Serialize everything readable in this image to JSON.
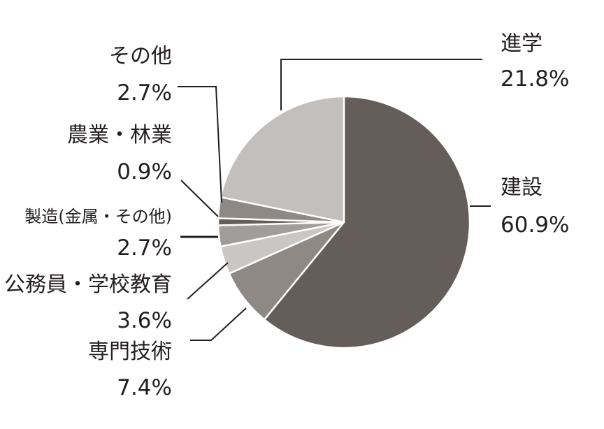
{
  "chart_data": {
    "type": "pie",
    "title": "",
    "slices": [
      {
        "name": "建設",
        "value": 60.9,
        "label": "60.9%",
        "color": "#645d5a"
      },
      {
        "name": "専門技術",
        "value": 7.4,
        "label": "7.4%",
        "color": "#8e8985"
      },
      {
        "name": "公務員・学校教育",
        "value": 3.6,
        "label": "3.6%",
        "color": "#c9c6c3"
      },
      {
        "name": "製造(金属・その他)",
        "value": 2.7,
        "label": "2.7%",
        "color": "#a19d9a"
      },
      {
        "name": "農業・林業",
        "value": 0.9,
        "label": "0.9%",
        "color": "#645d5a"
      },
      {
        "name": "その他",
        "value": 2.7,
        "label": "2.7%",
        "color": "#8e8985"
      },
      {
        "name": "進学",
        "value": 21.8,
        "label": "21.8%",
        "color": "#c2bfbc"
      }
    ]
  }
}
